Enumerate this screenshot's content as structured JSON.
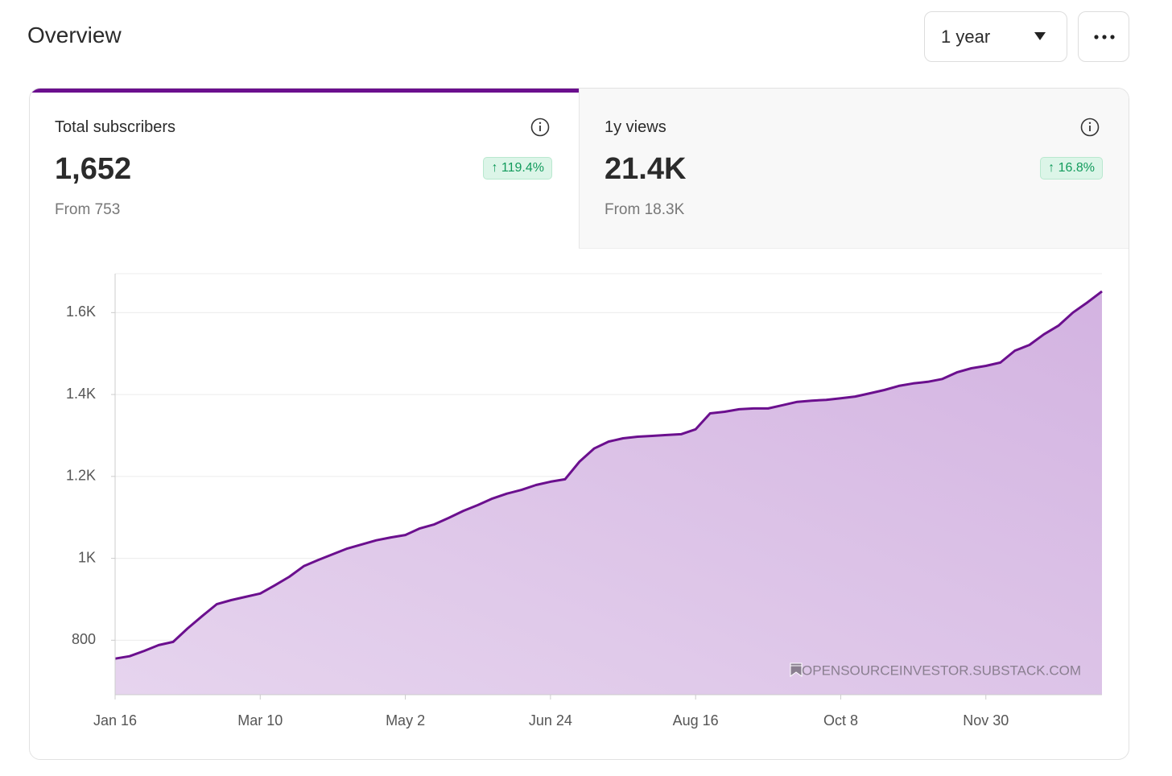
{
  "header": {
    "title": "Overview",
    "range": "1 year"
  },
  "stats": [
    {
      "label": "Total subscribers",
      "value": "1,652",
      "change": "119.4%",
      "from": "From 753"
    },
    {
      "label": "1y views",
      "value": "21.4K",
      "change": "16.8%",
      "from": "From 18.3K"
    }
  ],
  "watermark": "OPENSOURCEINVESTOR.SUBSTACK.COM",
  "chart_data": {
    "type": "area",
    "categories": [
      "Jan 16",
      null,
      null,
      null,
      null,
      null,
      null,
      null,
      null,
      null,
      "Mar 10",
      null,
      null,
      null,
      null,
      null,
      null,
      null,
      null,
      null,
      "May 2",
      null,
      null,
      null,
      null,
      null,
      null,
      null,
      null,
      null,
      "Jun 24",
      null,
      null,
      null,
      null,
      null,
      null,
      null,
      null,
      null,
      "Aug 16",
      null,
      null,
      null,
      null,
      null,
      null,
      null,
      null,
      null,
      "Oct 8",
      null,
      null,
      null,
      null,
      null,
      null,
      null,
      null,
      null,
      "Nov 30",
      null,
      null,
      null,
      null,
      null,
      null,
      null,
      null
    ],
    "series": [
      {
        "color": "#6b0f8e",
        "fill": "#d3b3e1",
        "values": [
          755,
          761,
          774,
          788,
          796,
          829,
          859,
          888,
          898,
          906,
          914,
          934,
          955,
          981,
          996,
          1010,
          1024,
          1034,
          1044,
          1051,
          1057,
          1073,
          1083,
          1099,
          1116,
          1130,
          1146,
          1158,
          1167,
          1179,
          1187,
          1193,
          1236,
          1268,
          1285,
          1293,
          1297,
          1299,
          1301,
          1303,
          1315,
          1354,
          1358,
          1364,
          1366,
          1366,
          1374,
          1382,
          1385,
          1387,
          1391,
          1395,
          1403,
          1411,
          1421,
          1427,
          1431,
          1438,
          1454,
          1464,
          1470,
          1478,
          1507,
          1521,
          1547,
          1568,
          1600,
          1625,
          1652
        ]
      }
    ],
    "ylim": [
      667,
      1695
    ],
    "yticks": [
      800,
      {
        "value": 1000,
        "label": "1K"
      },
      {
        "value": 1200,
        "label": "1.2K"
      },
      {
        "value": 1400,
        "label": "1.4K"
      },
      {
        "value": 1600,
        "label": "1.6K"
      }
    ],
    "grid": true
  }
}
